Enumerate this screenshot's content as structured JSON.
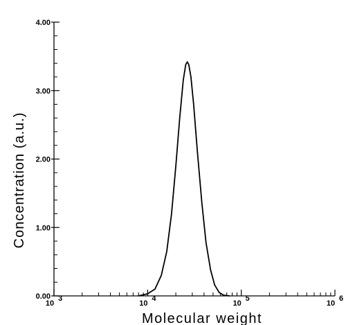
{
  "chart_data": {
    "type": "line",
    "xlabel": "Molecular weight",
    "ylabel": "Concentration (a.u.)",
    "xscale": "log",
    "xlim": [
      1000,
      1000000
    ],
    "ylim": [
      0,
      4
    ],
    "x_ticks": [
      {
        "value": 1000,
        "base": "10",
        "exp": "3"
      },
      {
        "value": 10000,
        "base": "10",
        "exp": "4"
      },
      {
        "value": 100000,
        "base": "10",
        "exp": "5"
      },
      {
        "value": 1000000,
        "base": "10",
        "exp": "6"
      }
    ],
    "y_ticks": [
      {
        "value": 0,
        "label": "0.00"
      },
      {
        "value": 1,
        "label": "1.00"
      },
      {
        "value": 2,
        "label": "2.00"
      },
      {
        "value": 3,
        "label": "3.00"
      },
      {
        "value": 4,
        "label": "4.00"
      }
    ],
    "grid": false,
    "series": [
      {
        "x": [
          8000,
          10000,
          12000,
          14000,
          16000,
          18000,
          20000,
          22000,
          24000,
          25500,
          26500,
          27500,
          29000,
          31000,
          34000,
          38000,
          42000,
          47000,
          52000,
          58000,
          65000,
          75000
        ],
        "y": [
          0.0,
          0.03,
          0.1,
          0.3,
          0.65,
          1.2,
          1.9,
          2.6,
          3.15,
          3.38,
          3.42,
          3.38,
          3.2,
          2.8,
          2.1,
          1.35,
          0.78,
          0.38,
          0.16,
          0.05,
          0.01,
          0.0
        ]
      }
    ]
  }
}
